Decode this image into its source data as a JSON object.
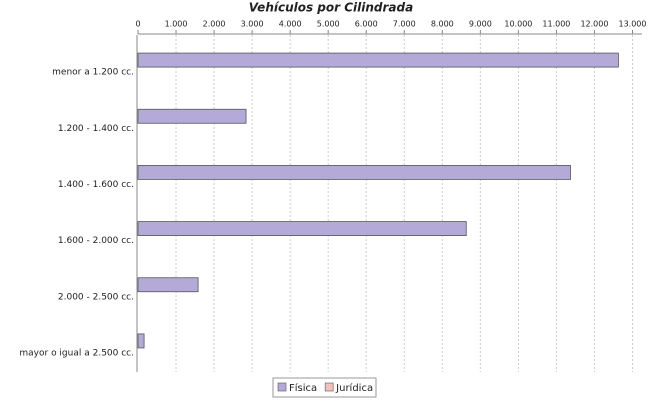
{
  "chart_data": {
    "type": "hbar",
    "title": "Vehículos por Cilindrada",
    "categories": [
      "menor a 1.200 cc.",
      "1.200 - 1.400 cc.",
      "1.400 - 1.600 cc.",
      "1.600 - 2.000 cc.",
      "2.000 - 2.500 cc.",
      "mayor o igual a 2.500 cc."
    ],
    "series": [
      {
        "name": "Física",
        "color": "#b4aad8",
        "values": [
          12630,
          2840,
          11370,
          8630,
          1580,
          160
        ]
      },
      {
        "name": "Jurídica",
        "color": "#f4c2ba",
        "values": [
          0,
          0,
          0,
          0,
          0,
          0
        ]
      }
    ],
    "xlim": [
      0,
      13250
    ],
    "xticks": [
      0,
      {
        "value": 1000,
        "label": "1.000"
      },
      {
        "value": 2000,
        "label": "2.000"
      },
      {
        "value": 3000,
        "label": "3.000"
      },
      {
        "value": 4000,
        "label": "4.000"
      },
      {
        "value": 5000,
        "label": "5.000"
      },
      {
        "value": 6000,
        "label": "6.000"
      },
      {
        "value": 7000,
        "label": "7.000"
      },
      {
        "value": 8000,
        "label": "8.000"
      },
      {
        "value": 9000,
        "label": "9.000"
      },
      {
        "value": 10000,
        "label": "10.000"
      },
      {
        "value": 11000,
        "label": "11.000"
      },
      {
        "value": 12000,
        "label": "12.000"
      },
      {
        "value": 13000,
        "label": "13.000"
      }
    ],
    "grid": true
  }
}
